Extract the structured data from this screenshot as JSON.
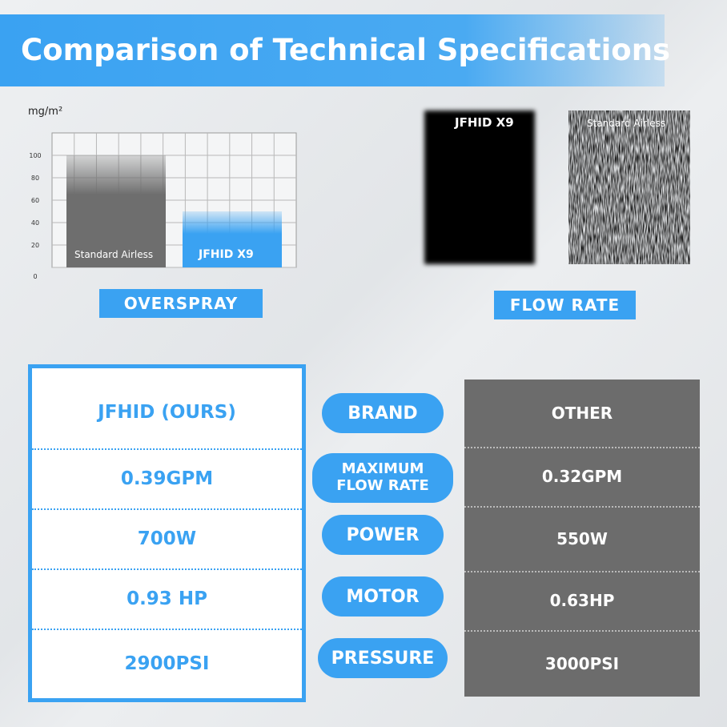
{
  "header": {
    "title": "Comparison of Technical Specifications"
  },
  "chart_data": {
    "type": "bar",
    "y_label": "mg/m²",
    "categories": [
      "Standard Airless",
      "JFHID X9"
    ],
    "values": [
      100,
      50
    ],
    "colors": [
      "#6e6e6e",
      "#3aa2f2"
    ],
    "ylim": [
      0,
      120
    ],
    "yticks": [
      0,
      20,
      40,
      60,
      80,
      100
    ],
    "grid": true,
    "caption": "OVERSPRAY"
  },
  "flow_rate": {
    "caption": "FLOW RATE",
    "samples": [
      "JFHID X9",
      "Standard Airless"
    ]
  },
  "comparison": {
    "ours": [
      "JFHID (OURS)",
      "0.39GPM",
      "700W",
      "0.93 HP",
      "2900PSI"
    ],
    "labels": [
      "BRAND",
      "MAXIMUM FLOW RATE",
      "POWER",
      "MOTOR",
      "PRESSURE"
    ],
    "other": [
      "OTHER",
      "0.32GPM",
      "550W",
      "0.63HP",
      "3000PSI"
    ]
  }
}
